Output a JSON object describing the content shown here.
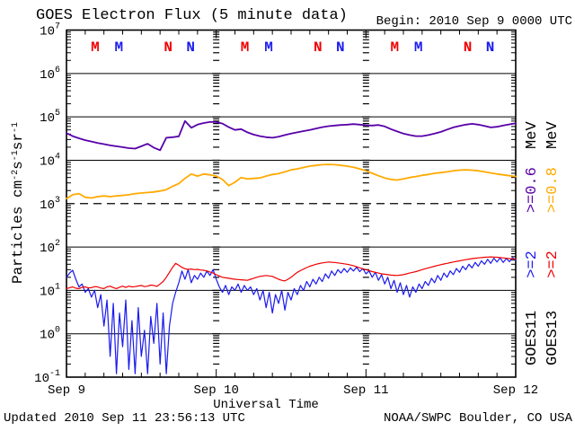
{
  "header": {
    "title": "GOES Electron Flux (5 minute data)",
    "begin": "Begin: 2010 Sep 9 0000 UTC"
  },
  "footer": {
    "updated": "Updated 2010 Sep 11 23:56:13 UTC",
    "credit": "NOAA/SWPC Boulder, CO USA"
  },
  "chart_data": {
    "type": "line",
    "title": "GOES Electron Flux (5 minute data)",
    "xlabel": "Universal Time",
    "ylabel_parts": [
      [
        "Particles cm",
        0
      ],
      [
        "-2",
        1
      ],
      [
        "s",
        0
      ],
      [
        "-1",
        1
      ],
      [
        "sr",
        0
      ],
      [
        "-1",
        1
      ]
    ],
    "x_days": [
      "Sep 9",
      "Sep 10",
      "Sep 11",
      "Sep 12"
    ],
    "x_range_hours": [
      0,
      72
    ],
    "x_minor_tick_hours": 3,
    "y_log_range": [
      -1,
      7
    ],
    "y_tick_exponents": [
      7,
      6,
      5,
      4,
      3,
      2,
      1,
      0,
      -1
    ],
    "grid_solid_exponents": [
      6,
      5,
      4,
      2,
      1,
      0
    ],
    "grid_dashed_exponents": [
      3
    ],
    "day_line_hours": [
      24,
      48
    ],
    "grid_on": true,
    "legend_position": "right-rotated",
    "colors": {
      "purple": "#5800a8",
      "orange": "#ffaa00",
      "blue": "#1a1aee",
      "red": "#ee0000",
      "axis": "#000000"
    },
    "top_markers": {
      "letters": [
        "M",
        "M",
        "N",
        "N"
      ],
      "colors": [
        "#ee0000",
        "#1a1aee",
        "#ee0000",
        "#1a1aee"
      ],
      "hour_offsets": [
        4.6,
        8.4,
        16.3,
        19.9
      ]
    },
    "legend_columns": [
      {
        "segments": [
          {
            "text": "GOES11",
            "color": "#000000"
          },
          {
            "text": ">=2",
            "color": "#1a1aee"
          },
          {
            "text": ">=0.6",
            "color": "#5800a8"
          },
          {
            "text": "MeV",
            "color": "#000000"
          }
        ]
      },
      {
        "segments": [
          {
            "text": "GOES13",
            "color": "#000000"
          },
          {
            "text": ">=2",
            "color": "#ee0000"
          },
          {
            "text": ">=0.8",
            "color": "#ffaa00"
          },
          {
            "text": "MeV",
            "color": "#000000"
          }
        ]
      }
    ],
    "series": [
      {
        "name": "GOES11 >=0.6 MeV",
        "color": "#5800a8",
        "width": 1.8,
        "dt_hours": 1,
        "start_hour": 0,
        "values": [
          42000,
          36000,
          32000,
          29000,
          27000,
          25000,
          23500,
          22000,
          21000,
          20000,
          19000,
          18500,
          21000,
          24000,
          19500,
          17000,
          33000,
          34000,
          35500,
          80000,
          56000,
          66000,
          72000,
          76000,
          76000,
          70000,
          58000,
          50000,
          52000,
          44000,
          39000,
          36000,
          34000,
          33000,
          35000,
          38000,
          41000,
          44000,
          47000,
          50000,
          54000,
          58000,
          61000,
          63000,
          65000,
          66000,
          68000,
          66000,
          64000,
          63000,
          65000,
          60000,
          52000,
          46000,
          41000,
          38000,
          36000,
          36000,
          38000,
          41000,
          45000,
          51000,
          57000,
          62000,
          66000,
          69000,
          66000,
          62000,
          57000,
          59000,
          63000,
          67000,
          71000
        ]
      },
      {
        "name": "GOES13 >=0.8 MeV",
        "color": "#ffaa00",
        "width": 1.8,
        "dt_hours": 1,
        "start_hour": 0,
        "values": [
          1300,
          1600,
          1700,
          1400,
          1350,
          1450,
          1500,
          1450,
          1500,
          1550,
          1600,
          1700,
          1750,
          1800,
          1850,
          1950,
          2100,
          2500,
          2900,
          3800,
          4800,
          4300,
          4800,
          4600,
          4300,
          3600,
          2600,
          3100,
          4000,
          3700,
          3800,
          3900,
          4300,
          4700,
          4900,
          5400,
          6000,
          6300,
          6800,
          7300,
          7600,
          7900,
          8000,
          7900,
          7600,
          7300,
          6900,
          6300,
          5700,
          5000,
          4400,
          3900,
          3600,
          3500,
          3700,
          4000,
          4200,
          4500,
          4700,
          5000,
          5200,
          5400,
          5700,
          5900,
          6000,
          5900,
          5700,
          5400,
          5100,
          4800,
          4600,
          4400,
          4200
        ]
      },
      {
        "name": "GOES11 >=2 MeV",
        "color": "#1a1aee",
        "width": 1.2,
        "dt_hours": 0.5,
        "start_hour": 0,
        "values": [
          20,
          25,
          29,
          18,
          12,
          14,
          9,
          11,
          7,
          10,
          4,
          8,
          1.5,
          6,
          0.3,
          5,
          0.12,
          3,
          0.5,
          6,
          0.15,
          2,
          0.12,
          4,
          0.3,
          1.2,
          0.12,
          2.5,
          0.6,
          5,
          0.2,
          3,
          0.12,
          1.5,
          5,
          9,
          15,
          28,
          18,
          30,
          15,
          22,
          18,
          25,
          20,
          28,
          22,
          30,
          18,
          12,
          9,
          13,
          8,
          12,
          10,
          14,
          9,
          13,
          10,
          12,
          8,
          11,
          6,
          10,
          4,
          9,
          3,
          8,
          5,
          10,
          3.5,
          9,
          6,
          11,
          8,
          13,
          10,
          16,
          12,
          18,
          14,
          20,
          16,
          24,
          19,
          28,
          22,
          30,
          25,
          32,
          26,
          33,
          28,
          34,
          27,
          32,
          24,
          28,
          20,
          26,
          17,
          23,
          14,
          20,
          11,
          17,
          9,
          15,
          8,
          13,
          7,
          12,
          9,
          14,
          11,
          16,
          13,
          19,
          15,
          22,
          17,
          25,
          20,
          28,
          23,
          32,
          26,
          36,
          30,
          40,
          33,
          44,
          36,
          48,
          40,
          52,
          42,
          55,
          45,
          56,
          44,
          54,
          46,
          57,
          50
        ]
      },
      {
        "name": "GOES13 >=2 MeV",
        "color": "#ee0000",
        "width": 1.2,
        "dt_hours": 0.5,
        "start_hour": 0,
        "values": [
          11,
          11.5,
          12,
          11.2,
          11,
          11.8,
          12,
          11.4,
          11.5,
          12.2,
          12,
          11.3,
          11,
          12,
          12.5,
          11.6,
          11,
          11.8,
          12.5,
          11.7,
          12.5,
          12,
          12.2,
          12.6,
          13,
          12.2,
          12.5,
          13.2,
          13,
          12.4,
          14,
          16,
          20,
          26,
          34,
          42,
          38,
          34,
          31.5,
          30.5,
          31,
          30,
          30.5,
          29.5,
          29,
          28,
          26.5,
          25,
          23,
          21.5,
          20,
          19.5,
          19,
          18.5,
          18,
          17.8,
          17.5,
          17.3,
          17,
          18,
          19,
          20,
          21,
          21.5,
          22,
          21.5,
          21,
          19.5,
          18,
          17,
          16.5,
          18,
          20,
          23,
          26,
          28.5,
          31,
          33.5,
          36,
          38,
          40,
          41.5,
          43,
          44,
          45,
          44.5,
          44,
          43,
          42,
          41,
          40,
          38.5,
          37,
          35,
          33,
          31.5,
          30,
          28.5,
          27,
          26,
          25,
          24,
          23.5,
          23,
          22.5,
          22.2,
          22,
          22.5,
          23,
          24,
          25,
          26,
          27,
          28.5,
          30,
          31.5,
          33,
          34.5,
          36,
          37.5,
          39,
          40.5,
          42,
          43.5,
          45,
          46.5,
          48,
          49.5,
          51,
          52.5,
          54,
          55,
          56,
          57,
          58,
          58.5,
          59,
          58.5,
          58,
          57,
          56,
          55,
          54,
          53.5,
          53
        ]
      }
    ]
  }
}
